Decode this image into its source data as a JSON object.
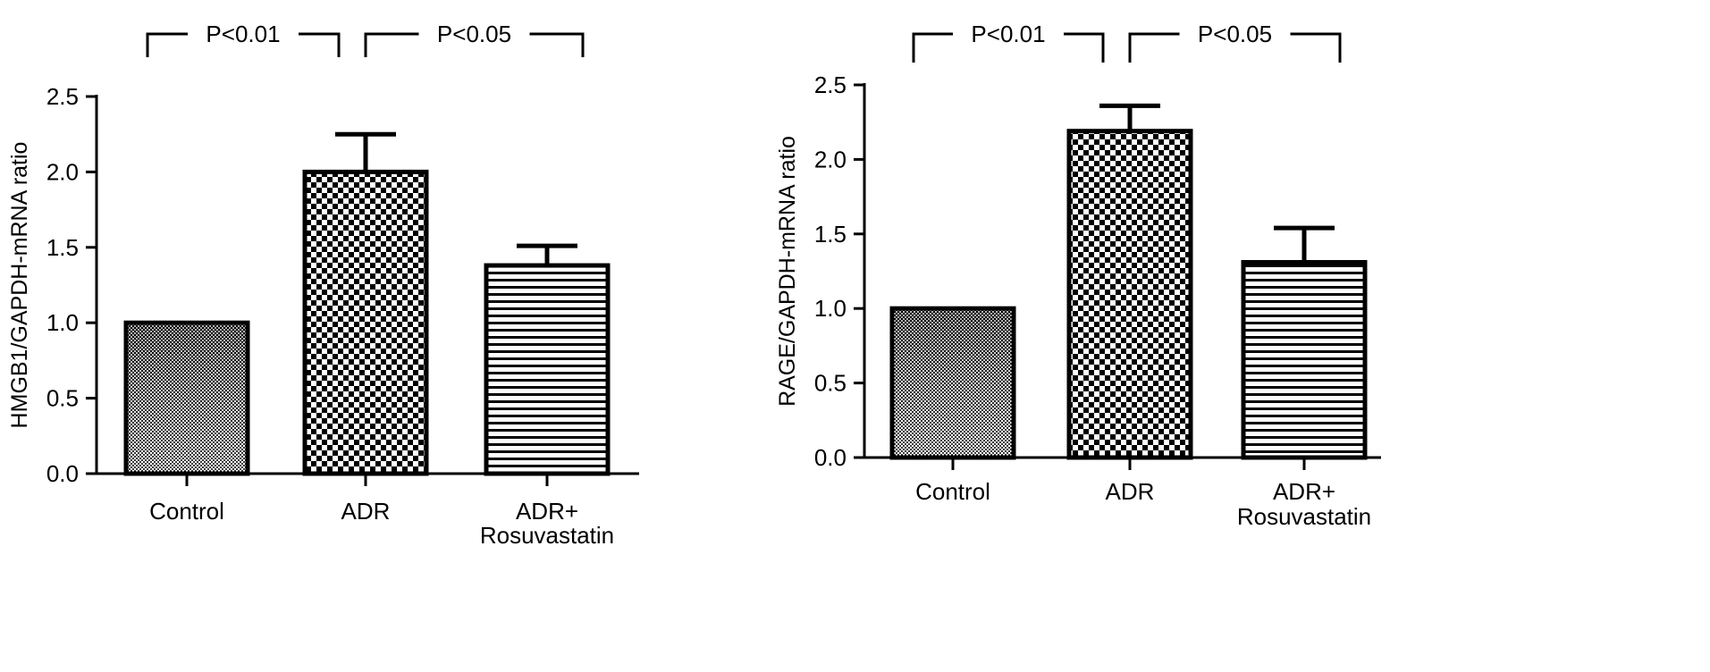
{
  "chart_data": [
    {
      "type": "bar",
      "ylabel": "HMGB1/GAPDH-mRNA ratio",
      "ylim": [
        0,
        2.5
      ],
      "yticks": [
        "0.0",
        "0.5",
        "1.0",
        "1.5",
        "2.0",
        "2.5"
      ],
      "grid": false,
      "categories": [
        {
          "line1": "Control",
          "line2": ""
        },
        {
          "line1": "ADR",
          "line2": ""
        },
        {
          "line1": "ADR+",
          "line2": "Rosuvastatin"
        }
      ],
      "values": [
        1.0,
        2.0,
        1.38
      ],
      "errors": [
        0,
        0.25,
        0.13
      ],
      "patterns": [
        "fine-gradient",
        "checker",
        "horizontal-lines"
      ],
      "significance": [
        {
          "from": 0,
          "to": 1,
          "label": "P<0.01"
        },
        {
          "from": 1,
          "to": 2,
          "label": "P<0.05"
        }
      ]
    },
    {
      "type": "bar",
      "ylabel": "RAGE/GAPDH-mRNA ratio",
      "ylim": [
        0,
        2.5
      ],
      "yticks": [
        "0.0",
        "0.5",
        "1.0",
        "1.5",
        "2.0",
        "2.5"
      ],
      "grid": false,
      "categories": [
        {
          "line1": "Control",
          "line2": ""
        },
        {
          "line1": "ADR",
          "line2": ""
        },
        {
          "line1": "ADR+",
          "line2": "Rosuvastatin"
        }
      ],
      "values": [
        1.0,
        2.19,
        1.31
      ],
      "errors": [
        0,
        0.17,
        0.23
      ],
      "patterns": [
        "fine-gradient",
        "checker",
        "horizontal-lines"
      ],
      "significance": [
        {
          "from": 0,
          "to": 1,
          "label": "P<0.01"
        },
        {
          "from": 1,
          "to": 2,
          "label": "P<0.05"
        }
      ]
    }
  ],
  "colors": {
    "ink": "#000000",
    "background": "#ffffff"
  }
}
